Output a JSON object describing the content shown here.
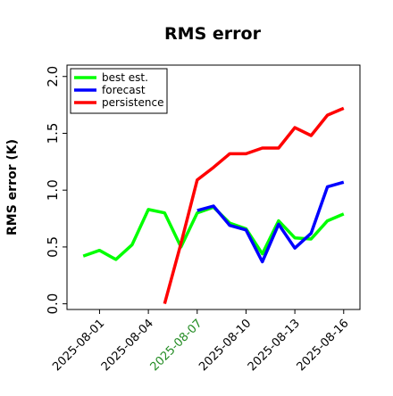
{
  "chart_data": {
    "type": "line",
    "title": "RMS error",
    "xlabel": "",
    "ylabel": "RMS error (K)",
    "ylim": [
      -0.05,
      2.1
    ],
    "xlim": [
      "2025-07-30",
      "2025-08-17"
    ],
    "yticks": [
      0.0,
      0.5,
      1.0,
      1.5,
      2.0
    ],
    "ytick_labels": [
      "0.0",
      "0.5",
      "1.0",
      "1.5",
      "2.0"
    ],
    "xticks": [
      "2025-08-01",
      "2025-08-04",
      "2025-08-07",
      "2025-08-10",
      "2025-08-13",
      "2025-08-16"
    ],
    "xtick_labels": [
      "2025-08-01",
      "2025-08-04",
      "2025-08-07",
      "2025-08-10",
      "2025-08-13",
      "2025-08-16"
    ],
    "highlighted_xtick": "2025-08-07",
    "highlight_color": "#228b22",
    "legend_position": "upper-left",
    "grid": false,
    "series": [
      {
        "name": "best est.",
        "color": "#00ff00",
        "x": [
          "2025-07-31",
          "2025-08-01",
          "2025-08-02",
          "2025-08-03",
          "2025-08-04",
          "2025-08-05",
          "2025-08-06",
          "2025-08-07",
          "2025-08-08",
          "2025-08-09",
          "2025-08-10",
          "2025-08-11",
          "2025-08-12",
          "2025-08-13",
          "2025-08-14",
          "2025-08-15",
          "2025-08-16"
        ],
        "y": [
          0.42,
          0.47,
          0.39,
          0.52,
          0.83,
          0.8,
          0.5,
          0.8,
          0.85,
          0.71,
          0.66,
          0.44,
          0.73,
          0.58,
          0.57,
          0.73,
          0.79
        ]
      },
      {
        "name": "forecast",
        "color": "#0000ff",
        "x": [
          "2025-08-07",
          "2025-08-08",
          "2025-08-09",
          "2025-08-10",
          "2025-08-11",
          "2025-08-12",
          "2025-08-13",
          "2025-08-14",
          "2025-08-15",
          "2025-08-16"
        ],
        "y": [
          0.82,
          0.86,
          0.69,
          0.65,
          0.37,
          0.7,
          0.49,
          0.62,
          1.03,
          1.07
        ]
      },
      {
        "name": "persistence",
        "color": "#ff0000",
        "x": [
          "2025-08-05",
          "2025-08-06",
          "2025-08-07",
          "2025-08-08",
          "2025-08-09",
          "2025-08-10",
          "2025-08-11",
          "2025-08-12",
          "2025-08-13",
          "2025-08-14",
          "2025-08-15",
          "2025-08-16"
        ],
        "y": [
          0.0,
          0.53,
          1.09,
          1.2,
          1.32,
          1.32,
          1.37,
          1.37,
          1.55,
          1.48,
          1.66,
          1.72
        ]
      }
    ]
  }
}
